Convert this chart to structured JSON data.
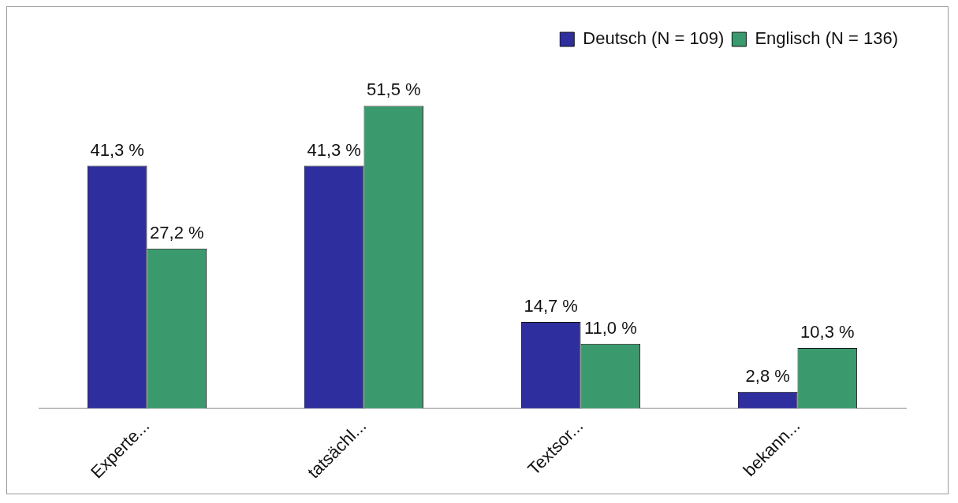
{
  "chart_data": {
    "type": "bar",
    "categories": [
      "Experte...",
      "tatsächl...",
      "Textsor...",
      "bekann..."
    ],
    "series": [
      {
        "name": "Deutsch (N = 109)",
        "color": "#2e2e9e",
        "values": [
          41.3,
          41.3,
          14.7,
          2.8
        ],
        "value_labels": [
          "41,3 %",
          "41,3 %",
          "14,7 %",
          "2,8 %"
        ]
      },
      {
        "name": "Englisch (N = 136)",
        "color": "#3a9a6e",
        "values": [
          27.2,
          51.5,
          11.0,
          10.3
        ],
        "value_labels": [
          "27,2 %",
          "51,5 %",
          "11,0 %",
          "10,3 %"
        ]
      }
    ],
    "tick_labels": "x",
    "grid": false,
    "legend": "top right"
  }
}
